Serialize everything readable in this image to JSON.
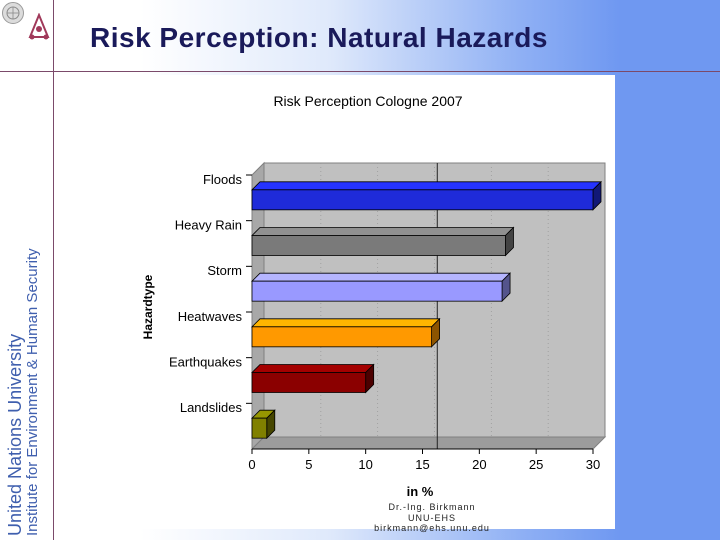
{
  "sidebar": {
    "line1": "United Nations University",
    "line2": "Institute for Environment & Human Security"
  },
  "slide_title": "Risk Perception: Natural Hazards",
  "credits": {
    "name": "Dr.-Ing. Birkmann",
    "org": "UNU-EHS",
    "email": "birkmann@ehs.unu.edu"
  },
  "chart_data": {
    "type": "bar",
    "orientation": "horizontal",
    "title": "Risk Perception Cologne 2007",
    "xlabel": "in %",
    "ylabel": "Hazardtype",
    "xlim": [
      0,
      30
    ],
    "xticks": [
      0,
      5,
      10,
      15,
      20,
      25,
      30
    ],
    "categories": [
      "Floods",
      "Heavy Rain",
      "Storm",
      "Heatwaves",
      "Earthquakes",
      "Landslides"
    ],
    "values": [
      30,
      22.3,
      22,
      15.8,
      10,
      1.3
    ],
    "colors": [
      "#1f2bd9",
      "#7a7a7a",
      "#9999ff",
      "#ff9900",
      "#8b0000",
      "#808000"
    ],
    "reference_line": 16.3,
    "style": "3d"
  }
}
